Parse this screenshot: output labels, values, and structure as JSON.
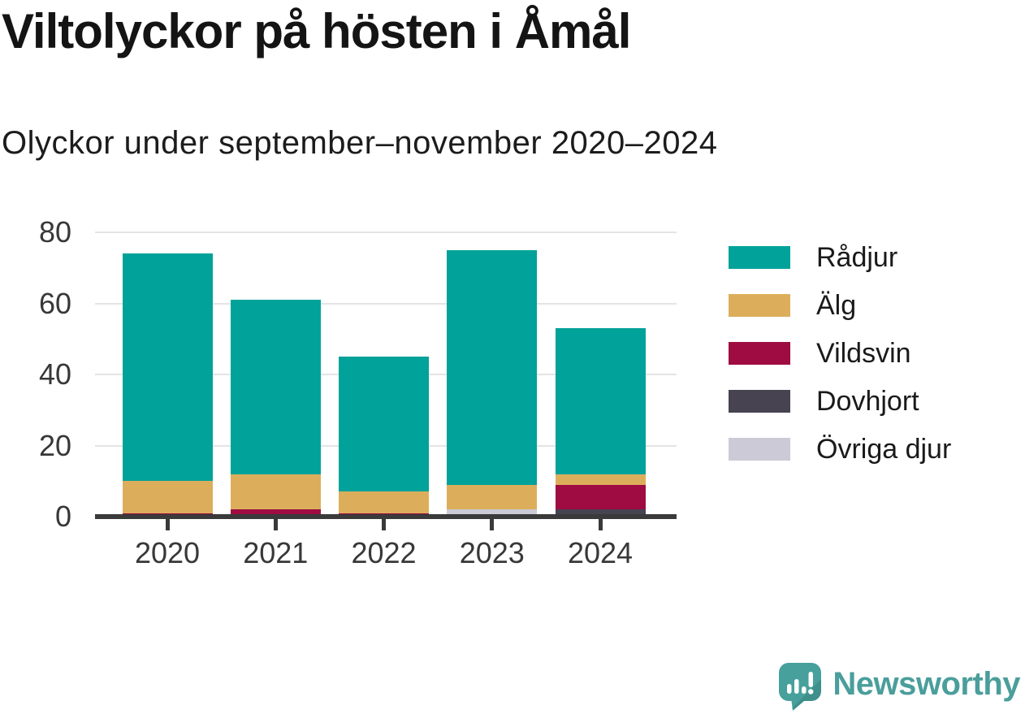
{
  "title": "Viltolyckor på hösten i Åmål",
  "subtitle": "Olyckor under september–november 2020–2024",
  "chart_data": {
    "type": "bar",
    "stacked": true,
    "title": "Viltolyckor på hösten i Åmål",
    "subtitle": "Olyckor under september–november 2020–2024",
    "categories": [
      "2020",
      "2021",
      "2022",
      "2023",
      "2024"
    ],
    "series": [
      {
        "name": "Rådjur",
        "color": "#00a29a",
        "values": [
          64,
          49,
          38,
          66,
          41
        ]
      },
      {
        "name": "Älg",
        "color": "#dcae5c",
        "values": [
          9,
          10,
          6,
          7,
          3
        ]
      },
      {
        "name": "Vildsvin",
        "color": "#9e0c41",
        "values": [
          1,
          2,
          1,
          0,
          7
        ]
      },
      {
        "name": "Dovhjort",
        "color": "#474350",
        "values": [
          0,
          0,
          0,
          0,
          2
        ]
      },
      {
        "name": "Övriga djur",
        "color": "#cbcad6",
        "values": [
          0,
          0,
          0,
          2,
          0
        ]
      }
    ],
    "totals": [
      74,
      61,
      45,
      75,
      53
    ],
    "stack_order_bottom_to_top": [
      "Övriga djur",
      "Dovhjort",
      "Vildsvin",
      "Älg",
      "Rådjur"
    ],
    "xlabel": "",
    "ylabel": "",
    "ylim": [
      0,
      80
    ],
    "yticks": [
      0,
      20,
      40,
      60,
      80
    ],
    "grid": "horizontal",
    "legend_position": "right"
  },
  "colors": {
    "axis": "#3a3a3a",
    "gridline": "#e4e4e4",
    "tick_label": "#383838",
    "brand_teal": "#4a9e9b"
  },
  "logo": {
    "brand": "Newsworthy",
    "icon": "newsworthy-chart-bubble-icon"
  }
}
